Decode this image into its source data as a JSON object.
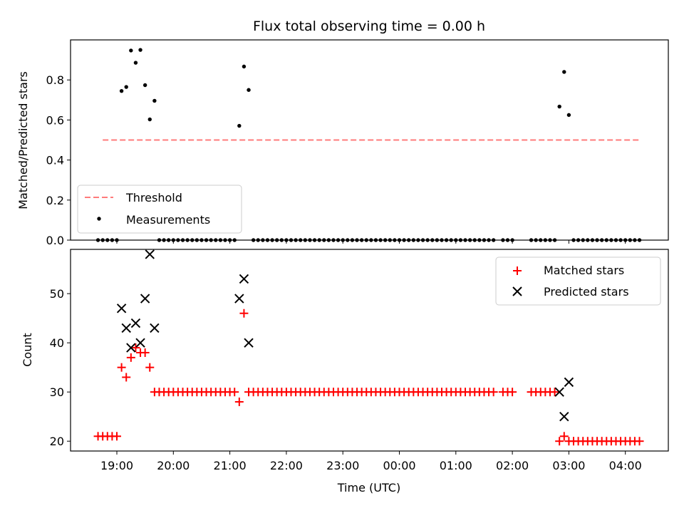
{
  "title": "Flux total observing time = 0.00 h",
  "xlabel": "Time (UTC)",
  "x_ticks": [
    "19:00",
    "20:00",
    "21:00",
    "22:00",
    "23:00",
    "00:00",
    "01:00",
    "02:00",
    "03:00",
    "04:00"
  ],
  "colors": {
    "threshold": "#ff7b7b",
    "matched": "#ff0000",
    "predicted": "#000000",
    "measurement": "#000000"
  },
  "chart_data": [
    {
      "type": "scatter",
      "ylabel": "Matched/Predicted stars",
      "ylim": [
        0,
        1.0
      ],
      "y_ticks": [
        0.0,
        0.2,
        0.4,
        0.6,
        0.8
      ],
      "legend": {
        "placement": "lower-left",
        "entries": [
          "Threshold",
          "Measurements"
        ]
      },
      "threshold": {
        "name": "Threshold",
        "value": 0.5,
        "x_start": "18:45",
        "x_end": "04:15"
      },
      "series": [
        {
          "name": "Measurements",
          "points": [
            [
              "18:40",
              0
            ],
            [
              "18:45",
              0
            ],
            [
              "18:50",
              0
            ],
            [
              "18:55",
              0
            ],
            [
              "19:00",
              0
            ],
            [
              "19:05",
              0.745
            ],
            [
              "19:10",
              0.765
            ],
            [
              "19:15",
              0.947
            ],
            [
              "19:20",
              0.886
            ],
            [
              "19:25",
              0.95
            ],
            [
              "19:30",
              0.774
            ],
            [
              "19:35",
              0.603
            ],
            [
              "19:40",
              0.696
            ],
            [
              "19:45",
              0
            ],
            [
              "19:50",
              0
            ],
            [
              "19:55",
              0
            ],
            [
              "20:00",
              0
            ],
            [
              "20:05",
              0
            ],
            [
              "20:10",
              0
            ],
            [
              "20:15",
              0
            ],
            [
              "20:20",
              0
            ],
            [
              "20:25",
              0
            ],
            [
              "20:30",
              0
            ],
            [
              "20:35",
              0
            ],
            [
              "20:40",
              0
            ],
            [
              "20:45",
              0
            ],
            [
              "20:50",
              0
            ],
            [
              "20:55",
              0
            ],
            [
              "21:00",
              0
            ],
            [
              "21:05",
              0
            ],
            [
              "21:10",
              0.571
            ],
            [
              "21:15",
              0.867
            ],
            [
              "21:20",
              0.75
            ],
            [
              "21:25",
              0
            ],
            [
              "21:30",
              0
            ],
            [
              "21:35",
              0
            ],
            [
              "21:40",
              0
            ],
            [
              "21:45",
              0
            ],
            [
              "21:50",
              0
            ],
            [
              "21:55",
              0
            ],
            [
              "22:00",
              0
            ],
            [
              "22:05",
              0
            ],
            [
              "22:10",
              0
            ],
            [
              "22:15",
              0
            ],
            [
              "22:20",
              0
            ],
            [
              "22:25",
              0
            ],
            [
              "22:30",
              0
            ],
            [
              "22:35",
              0
            ],
            [
              "22:40",
              0
            ],
            [
              "22:45",
              0
            ],
            [
              "22:50",
              0
            ],
            [
              "22:55",
              0
            ],
            [
              "23:00",
              0
            ],
            [
              "23:05",
              0
            ],
            [
              "23:10",
              0
            ],
            [
              "23:15",
              0
            ],
            [
              "23:20",
              0
            ],
            [
              "23:25",
              0
            ],
            [
              "23:30",
              0
            ],
            [
              "23:35",
              0
            ],
            [
              "23:40",
              0
            ],
            [
              "23:45",
              0
            ],
            [
              "23:50",
              0
            ],
            [
              "23:55",
              0
            ],
            [
              "00:00",
              0
            ],
            [
              "00:05",
              0
            ],
            [
              "00:10",
              0
            ],
            [
              "00:15",
              0
            ],
            [
              "00:20",
              0
            ],
            [
              "00:25",
              0
            ],
            [
              "00:30",
              0
            ],
            [
              "00:35",
              0
            ],
            [
              "00:40",
              0
            ],
            [
              "00:45",
              0
            ],
            [
              "00:50",
              0
            ],
            [
              "00:55",
              0
            ],
            [
              "01:00",
              0
            ],
            [
              "01:05",
              0
            ],
            [
              "01:10",
              0
            ],
            [
              "01:15",
              0
            ],
            [
              "01:20",
              0
            ],
            [
              "01:25",
              0
            ],
            [
              "01:30",
              0
            ],
            [
              "01:35",
              0
            ],
            [
              "01:40",
              0
            ],
            [
              "01:50",
              0
            ],
            [
              "01:55",
              0
            ],
            [
              "02:00",
              0
            ],
            [
              "02:20",
              0
            ],
            [
              "02:25",
              0
            ],
            [
              "02:30",
              0
            ],
            [
              "02:35",
              0
            ],
            [
              "02:40",
              0
            ],
            [
              "02:45",
              0
            ],
            [
              "02:50",
              0.667
            ],
            [
              "02:55",
              0.84
            ],
            [
              "03:00",
              0.625
            ],
            [
              "03:05",
              0
            ],
            [
              "03:10",
              0
            ],
            [
              "03:15",
              0
            ],
            [
              "03:20",
              0
            ],
            [
              "03:25",
              0
            ],
            [
              "03:30",
              0
            ],
            [
              "03:35",
              0
            ],
            [
              "03:40",
              0
            ],
            [
              "03:45",
              0
            ],
            [
              "03:50",
              0
            ],
            [
              "03:55",
              0
            ],
            [
              "04:00",
              0
            ],
            [
              "04:05",
              0
            ],
            [
              "04:10",
              0
            ],
            [
              "04:15",
              0
            ]
          ]
        }
      ]
    },
    {
      "type": "scatter",
      "ylabel": "Count",
      "ylim": [
        18,
        59
      ],
      "y_ticks": [
        20,
        30,
        40,
        50
      ],
      "legend": {
        "placement": "top-right",
        "entries": [
          "Matched stars",
          "Predicted stars"
        ]
      },
      "series": [
        {
          "name": "Matched stars",
          "marker": "plus",
          "points": [
            [
              "18:40",
              21
            ],
            [
              "18:45",
              21
            ],
            [
              "18:50",
              21
            ],
            [
              "18:55",
              21
            ],
            [
              "19:00",
              21
            ],
            [
              "19:05",
              35
            ],
            [
              "19:10",
              33
            ],
            [
              "19:15",
              37
            ],
            [
              "19:20",
              39
            ],
            [
              "19:25",
              38
            ],
            [
              "19:30",
              38
            ],
            [
              "19:35",
              35
            ],
            [
              "19:40",
              30
            ],
            [
              "19:45",
              30
            ],
            [
              "19:50",
              30
            ],
            [
              "19:55",
              30
            ],
            [
              "20:00",
              30
            ],
            [
              "20:05",
              30
            ],
            [
              "20:10",
              30
            ],
            [
              "20:15",
              30
            ],
            [
              "20:20",
              30
            ],
            [
              "20:25",
              30
            ],
            [
              "20:30",
              30
            ],
            [
              "20:35",
              30
            ],
            [
              "20:40",
              30
            ],
            [
              "20:45",
              30
            ],
            [
              "20:50",
              30
            ],
            [
              "20:55",
              30
            ],
            [
              "21:00",
              30
            ],
            [
              "21:05",
              30
            ],
            [
              "21:10",
              28
            ],
            [
              "21:15",
              46
            ],
            [
              "21:20",
              30
            ],
            [
              "21:25",
              30
            ],
            [
              "21:30",
              30
            ],
            [
              "21:35",
              30
            ],
            [
              "21:40",
              30
            ],
            [
              "21:45",
              30
            ],
            [
              "21:50",
              30
            ],
            [
              "21:55",
              30
            ],
            [
              "22:00",
              30
            ],
            [
              "22:05",
              30
            ],
            [
              "22:10",
              30
            ],
            [
              "22:15",
              30
            ],
            [
              "22:20",
              30
            ],
            [
              "22:25",
              30
            ],
            [
              "22:30",
              30
            ],
            [
              "22:35",
              30
            ],
            [
              "22:40",
              30
            ],
            [
              "22:45",
              30
            ],
            [
              "22:50",
              30
            ],
            [
              "22:55",
              30
            ],
            [
              "23:00",
              30
            ],
            [
              "23:05",
              30
            ],
            [
              "23:10",
              30
            ],
            [
              "23:15",
              30
            ],
            [
              "23:20",
              30
            ],
            [
              "23:25",
              30
            ],
            [
              "23:30",
              30
            ],
            [
              "23:35",
              30
            ],
            [
              "23:40",
              30
            ],
            [
              "23:45",
              30
            ],
            [
              "23:50",
              30
            ],
            [
              "23:55",
              30
            ],
            [
              "00:00",
              30
            ],
            [
              "00:05",
              30
            ],
            [
              "00:10",
              30
            ],
            [
              "00:15",
              30
            ],
            [
              "00:20",
              30
            ],
            [
              "00:25",
              30
            ],
            [
              "00:30",
              30
            ],
            [
              "00:35",
              30
            ],
            [
              "00:40",
              30
            ],
            [
              "00:45",
              30
            ],
            [
              "00:50",
              30
            ],
            [
              "00:55",
              30
            ],
            [
              "01:00",
              30
            ],
            [
              "01:05",
              30
            ],
            [
              "01:10",
              30
            ],
            [
              "01:15",
              30
            ],
            [
              "01:20",
              30
            ],
            [
              "01:25",
              30
            ],
            [
              "01:30",
              30
            ],
            [
              "01:35",
              30
            ],
            [
              "01:40",
              30
            ],
            [
              "01:50",
              30
            ],
            [
              "01:55",
              30
            ],
            [
              "02:00",
              30
            ],
            [
              "02:20",
              30
            ],
            [
              "02:25",
              30
            ],
            [
              "02:30",
              30
            ],
            [
              "02:35",
              30
            ],
            [
              "02:40",
              30
            ],
            [
              "02:45",
              30
            ],
            [
              "02:50",
              20
            ],
            [
              "02:55",
              21
            ],
            [
              "03:00",
              20
            ],
            [
              "03:05",
              20
            ],
            [
              "03:10",
              20
            ],
            [
              "03:15",
              20
            ],
            [
              "03:20",
              20
            ],
            [
              "03:25",
              20
            ],
            [
              "03:30",
              20
            ],
            [
              "03:35",
              20
            ],
            [
              "03:40",
              20
            ],
            [
              "03:45",
              20
            ],
            [
              "03:50",
              20
            ],
            [
              "03:55",
              20
            ],
            [
              "04:00",
              20
            ],
            [
              "04:05",
              20
            ],
            [
              "04:10",
              20
            ],
            [
              "04:15",
              20
            ]
          ]
        },
        {
          "name": "Predicted stars",
          "marker": "x",
          "points": [
            [
              "19:05",
              47
            ],
            [
              "19:10",
              43
            ],
            [
              "19:15",
              39
            ],
            [
              "19:20",
              44
            ],
            [
              "19:25",
              40
            ],
            [
              "19:30",
              49
            ],
            [
              "19:35",
              58
            ],
            [
              "19:40",
              43
            ],
            [
              "21:10",
              49
            ],
            [
              "21:15",
              53
            ],
            [
              "21:20",
              40
            ],
            [
              "02:50",
              30
            ],
            [
              "02:55",
              25
            ],
            [
              "03:00",
              32
            ]
          ]
        }
      ]
    }
  ]
}
